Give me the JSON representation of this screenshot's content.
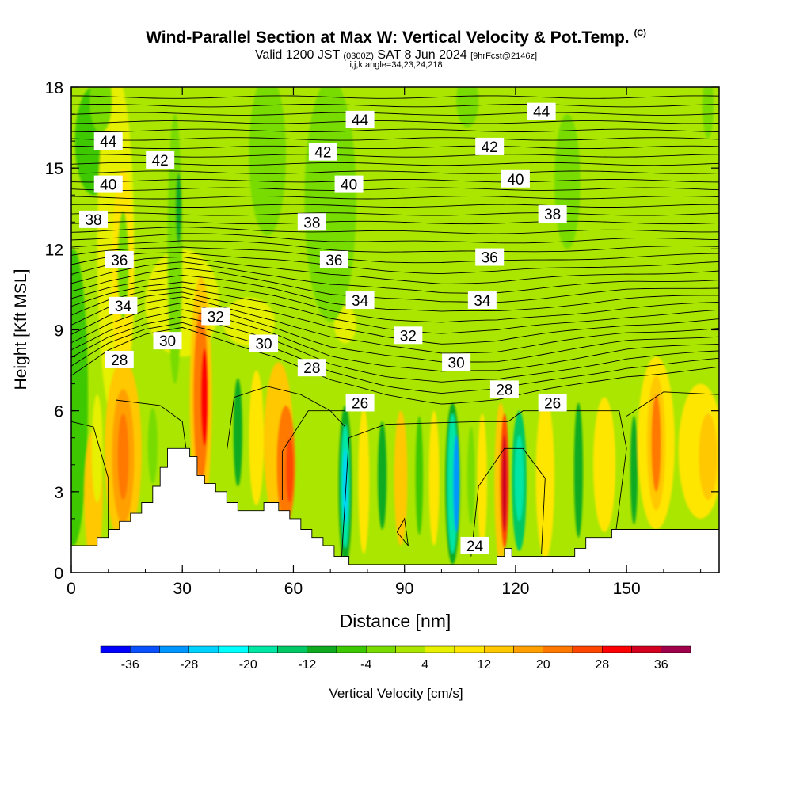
{
  "title": {
    "main": "Wind-Parallel Section at Max W: Vertical Velocity & Pot.Temp.",
    "copyright": "(C)",
    "valid_prefix": "Valid 1200 JST",
    "valid_utc": "(0300Z)",
    "valid_date": "SAT 8 Jun 2024",
    "forecast": "[9hrFcst@2146z]",
    "indices": "i,j,k,angle=34,23,24,218"
  },
  "chart_data": {
    "type": "heatmap",
    "xlabel": "Distance [nm]",
    "ylabel": "Height [Kft MSL]",
    "xlim": [
      0,
      175
    ],
    "ylim": [
      0,
      18
    ],
    "x_ticks": [
      0,
      30,
      60,
      90,
      120,
      150
    ],
    "y_ticks": [
      0,
      3,
      6,
      9,
      12,
      15,
      18
    ],
    "colorbar": {
      "label": "Vertical Velocity [cm/s]",
      "ticks": [
        -36,
        -28,
        -20,
        -12,
        -4,
        4,
        12,
        20,
        28,
        36
      ],
      "levels": [
        -40,
        -36,
        -32,
        -28,
        -24,
        -20,
        -16,
        -12,
        -8,
        -4,
        0,
        4,
        8,
        12,
        16,
        20,
        24,
        28,
        32,
        36,
        40
      ],
      "colors": [
        "#0000ff",
        "#0a50ff",
        "#0096ff",
        "#00d2ff",
        "#00ffff",
        "#00e6a5",
        "#00c864",
        "#10aa20",
        "#3cc800",
        "#78dc00",
        "#aae600",
        "#e6f000",
        "#ffe600",
        "#ffc800",
        "#ffa000",
        "#ff7800",
        "#ff4600",
        "#ff0000",
        "#d2001e",
        "#a0004b",
        "#640082"
      ]
    },
    "background_value_range": [
      -4,
      0
    ],
    "theta_contour_labels": [
      {
        "label": "44",
        "x": 10,
        "y": 16.0
      },
      {
        "label": "44",
        "x": 78,
        "y": 16.8
      },
      {
        "label": "44",
        "x": 127,
        "y": 17.1
      },
      {
        "label": "42",
        "x": 24,
        "y": 15.3
      },
      {
        "label": "42",
        "x": 68,
        "y": 15.6
      },
      {
        "label": "42",
        "x": 113,
        "y": 15.8
      },
      {
        "label": "40",
        "x": 10,
        "y": 14.4
      },
      {
        "label": "40",
        "x": 75,
        "y": 14.4
      },
      {
        "label": "40",
        "x": 120,
        "y": 14.6
      },
      {
        "label": "38",
        "x": 6,
        "y": 13.1
      },
      {
        "label": "38",
        "x": 65,
        "y": 13.0
      },
      {
        "label": "38",
        "x": 130,
        "y": 13.3
      },
      {
        "label": "36",
        "x": 13,
        "y": 11.6
      },
      {
        "label": "36",
        "x": 71,
        "y": 11.6
      },
      {
        "label": "36",
        "x": 113,
        "y": 11.7
      },
      {
        "label": "34",
        "x": 14,
        "y": 9.9
      },
      {
        "label": "34",
        "x": 78,
        "y": 10.1
      },
      {
        "label": "34",
        "x": 111,
        "y": 10.1
      },
      {
        "label": "32",
        "x": 39,
        "y": 9.5
      },
      {
        "label": "32",
        "x": 91,
        "y": 8.8
      },
      {
        "label": "30",
        "x": 26,
        "y": 8.6
      },
      {
        "label": "30",
        "x": 52,
        "y": 8.5
      },
      {
        "label": "30",
        "x": 104,
        "y": 7.8
      },
      {
        "label": "28",
        "x": 13,
        "y": 7.9
      },
      {
        "label": "28",
        "x": 65,
        "y": 7.6
      },
      {
        "label": "28",
        "x": 117,
        "y": 6.8
      },
      {
        "label": "26",
        "x": 78,
        "y": 6.3
      },
      {
        "label": "26",
        "x": 130,
        "y": 6.3
      },
      {
        "label": "24",
        "x": 109,
        "y": 1.0
      }
    ],
    "cells": [
      {
        "x": 0.5,
        "y": 6.5,
        "rx": 4,
        "ry": 5.5,
        "level": 8
      },
      {
        "x": 6,
        "y": 16,
        "rx": 5,
        "ry": 2,
        "level": 8
      },
      {
        "x": 12,
        "y": 12,
        "rx": 5,
        "ry": 6.5,
        "level": 11
      },
      {
        "x": 14,
        "y": 11,
        "rx": 3,
        "ry": 4,
        "level": 12
      },
      {
        "x": 30,
        "y": 10,
        "rx": 10,
        "ry": 2,
        "level": 11
      },
      {
        "x": 48,
        "y": 9.3,
        "rx": 7,
        "ry": 0.9,
        "level": 11
      },
      {
        "x": 74,
        "y": 9.2,
        "rx": 3,
        "ry": 0.7,
        "level": 11
      },
      {
        "x": 6,
        "y": 2.8,
        "rx": 2.5,
        "ry": 2.5,
        "level": 13
      },
      {
        "x": 14,
        "y": 4.5,
        "rx": 5,
        "ry": 3.4,
        "level": 13
      },
      {
        "x": 14,
        "y": 4.3,
        "rx": 3,
        "ry": 2.5,
        "level": 14
      },
      {
        "x": 14,
        "y": 4.3,
        "rx": 1.5,
        "ry": 1.6,
        "level": 15
      },
      {
        "x": 7,
        "y": 4.6,
        "rx": 1.5,
        "ry": 2.0,
        "level": 11
      },
      {
        "x": 22,
        "y": 4.7,
        "rx": 1.3,
        "ry": 1.4,
        "level": 9
      },
      {
        "x": 35,
        "y": 6.5,
        "rx": 3,
        "ry": 4.5,
        "level": 13
      },
      {
        "x": 35,
        "y": 6.5,
        "rx": 2,
        "ry": 3.2,
        "level": 15
      },
      {
        "x": 36,
        "y": 6.5,
        "rx": 1,
        "ry": 1.8,
        "level": 17
      },
      {
        "x": 45,
        "y": 5.2,
        "rx": 1.2,
        "ry": 2,
        "level": 7
      },
      {
        "x": 50,
        "y": 5.0,
        "rx": 2,
        "ry": 2.5,
        "level": 12
      },
      {
        "x": 56,
        "y": 4.8,
        "rx": 4,
        "ry": 3,
        "level": 13
      },
      {
        "x": 58,
        "y": 4.0,
        "rx": 2.5,
        "ry": 2.2,
        "level": 15
      },
      {
        "x": 59,
        "y": 3.8,
        "rx": 1,
        "ry": 1.2,
        "level": 16
      },
      {
        "x": 74,
        "y": 3.2,
        "rx": 1.8,
        "ry": 3.0,
        "level": 7
      },
      {
        "x": 74,
        "y": 3.2,
        "rx": 1.2,
        "ry": 2.3,
        "level": 5
      },
      {
        "x": 74,
        "y": 3.2,
        "rx": 0.6,
        "ry": 1.4,
        "level": 3
      },
      {
        "x": 79,
        "y": 3.4,
        "rx": 1.5,
        "ry": 2.7,
        "level": 12
      },
      {
        "x": 84,
        "y": 3.6,
        "rx": 1.2,
        "ry": 2.0,
        "level": 7
      },
      {
        "x": 89,
        "y": 3.5,
        "rx": 1.8,
        "ry": 2.5,
        "level": 13
      },
      {
        "x": 94,
        "y": 3.6,
        "rx": 1.0,
        "ry": 2.2,
        "level": 8
      },
      {
        "x": 98,
        "y": 3.5,
        "rx": 1.4,
        "ry": 2.5,
        "level": 12
      },
      {
        "x": 103,
        "y": 3.3,
        "rx": 2.0,
        "ry": 3.0,
        "level": 7
      },
      {
        "x": 103,
        "y": 3.3,
        "rx": 1.4,
        "ry": 2.6,
        "level": 5
      },
      {
        "x": 104,
        "y": 3.3,
        "rx": 0.8,
        "ry": 1.8,
        "level": 2
      },
      {
        "x": 108,
        "y": 3.6,
        "rx": 1.0,
        "ry": 1.8,
        "level": 9
      },
      {
        "x": 111,
        "y": 3.4,
        "rx": 1.3,
        "ry": 2.5,
        "level": 12
      },
      {
        "x": 116,
        "y": 3.3,
        "rx": 1.7,
        "ry": 3.0,
        "level": 13
      },
      {
        "x": 117,
        "y": 3.4,
        "rx": 1.2,
        "ry": 2.5,
        "level": 16
      },
      {
        "x": 117,
        "y": 3.3,
        "rx": 0.7,
        "ry": 1.8,
        "level": 18
      },
      {
        "x": 121,
        "y": 3.4,
        "rx": 2.0,
        "ry": 2.6,
        "level": 6
      },
      {
        "x": 121,
        "y": 3.5,
        "rx": 1.2,
        "ry": 1.6,
        "level": 5
      },
      {
        "x": 128,
        "y": 3.5,
        "rx": 2.5,
        "ry": 3,
        "level": 12
      },
      {
        "x": 137,
        "y": 3.8,
        "rx": 1.2,
        "ry": 2.5,
        "level": 7
      },
      {
        "x": 144,
        "y": 4.0,
        "rx": 3,
        "ry": 2.5,
        "level": 12
      },
      {
        "x": 152,
        "y": 3.8,
        "rx": 1.0,
        "ry": 2.0,
        "level": 7
      },
      {
        "x": 158,
        "y": 4.8,
        "rx": 5,
        "ry": 3.2,
        "level": 12
      },
      {
        "x": 158,
        "y": 4.8,
        "rx": 2.5,
        "ry": 2.5,
        "level": 13
      },
      {
        "x": 158,
        "y": 4.8,
        "rx": 1.3,
        "ry": 1.8,
        "level": 15
      },
      {
        "x": 170,
        "y": 4.5,
        "rx": 6,
        "ry": 2.5,
        "level": 12
      },
      {
        "x": 172,
        "y": 4.3,
        "rx": 2.5,
        "ry": 1.6,
        "level": 13
      },
      {
        "x": 70,
        "y": 13.8,
        "rx": 7,
        "ry": 4.5,
        "level": 9
      },
      {
        "x": 53,
        "y": 15.5,
        "rx": 5,
        "ry": 3,
        "level": 9
      },
      {
        "x": 28,
        "y": 12,
        "rx": 2,
        "ry": 5,
        "level": 9
      },
      {
        "x": 29,
        "y": 13.5,
        "rx": 0.8,
        "ry": 1.3,
        "level": 7
      },
      {
        "x": 134,
        "y": 14.5,
        "rx": 3.5,
        "ry": 2.5,
        "level": 9
      },
      {
        "x": 107,
        "y": 17.5,
        "rx": 3,
        "ry": 1.0,
        "level": 9
      },
      {
        "x": 172,
        "y": 17.3,
        "rx": 1.5,
        "ry": 1.2,
        "level": 9
      },
      {
        "x": 8,
        "y": 17.5,
        "rx": 3,
        "ry": 1.2,
        "level": 9
      },
      {
        "x": 14,
        "y": 11.4,
        "rx": 1.5,
        "ry": 2,
        "level": 9
      }
    ],
    "terrain": [
      [
        0,
        1.0
      ],
      [
        7,
        1.0
      ],
      [
        7,
        1.3
      ],
      [
        10,
        1.3
      ],
      [
        10,
        1.6
      ],
      [
        13,
        1.6
      ],
      [
        13,
        1.9
      ],
      [
        16,
        1.9
      ],
      [
        16,
        2.2
      ],
      [
        19,
        2.2
      ],
      [
        19,
        2.6
      ],
      [
        22,
        2.6
      ],
      [
        22,
        3.2
      ],
      [
        24,
        3.2
      ],
      [
        24,
        3.9
      ],
      [
        26,
        3.9
      ],
      [
        26,
        4.6
      ],
      [
        32,
        4.6
      ],
      [
        32,
        4.3
      ],
      [
        34,
        4.3
      ],
      [
        34,
        3.6
      ],
      [
        36,
        3.6
      ],
      [
        36,
        3.3
      ],
      [
        39,
        3.3
      ],
      [
        39,
        3.0
      ],
      [
        42,
        3.0
      ],
      [
        42,
        2.6
      ],
      [
        45,
        2.6
      ],
      [
        45,
        2.3
      ],
      [
        52,
        2.3
      ],
      [
        52,
        2.6
      ],
      [
        56,
        2.6
      ],
      [
        56,
        2.3
      ],
      [
        59,
        2.3
      ],
      [
        59,
        2.0
      ],
      [
        62,
        2.0
      ],
      [
        62,
        1.6
      ],
      [
        65,
        1.6
      ],
      [
        65,
        1.3
      ],
      [
        68,
        1.3
      ],
      [
        68,
        1.0
      ],
      [
        71,
        1.0
      ],
      [
        71,
        0.6
      ],
      [
        75,
        0.6
      ],
      [
        75,
        0.3
      ],
      [
        115,
        0.3
      ],
      [
        115,
        0.6
      ],
      [
        117,
        0.6
      ],
      [
        117,
        0.9
      ],
      [
        119,
        0.9
      ],
      [
        119,
        0.6
      ],
      [
        136,
        0.6
      ],
      [
        136,
        0.9
      ],
      [
        139,
        0.9
      ],
      [
        139,
        1.3
      ],
      [
        146,
        1.3
      ],
      [
        146,
        1.6
      ],
      [
        175,
        1.6
      ]
    ],
    "theta_baseline": [
      {
        "x": 0,
        "y": 7.3
      },
      {
        "x": 10,
        "y": 8.2
      },
      {
        "x": 20,
        "y": 8.8
      },
      {
        "x": 30,
        "y": 9.1
      },
      {
        "x": 40,
        "y": 8.7
      },
      {
        "x": 55,
        "y": 8.0
      },
      {
        "x": 70,
        "y": 7.1
      },
      {
        "x": 85,
        "y": 6.6
      },
      {
        "x": 100,
        "y": 6.3
      },
      {
        "x": 115,
        "y": 6.4
      },
      {
        "x": 130,
        "y": 6.8
      },
      {
        "x": 150,
        "y": 7.3
      },
      {
        "x": 175,
        "y": 7.6
      }
    ]
  }
}
